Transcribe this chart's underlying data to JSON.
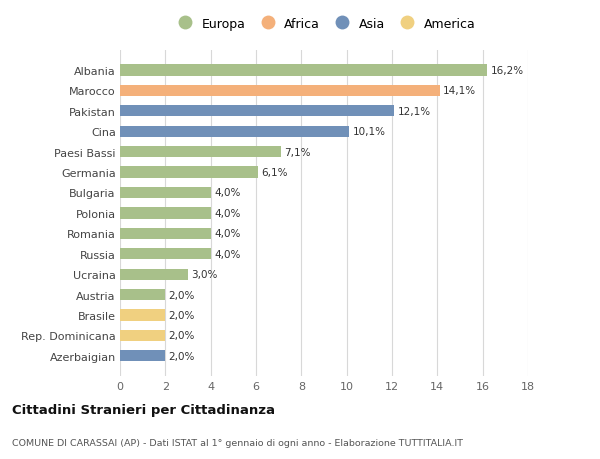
{
  "categories": [
    "Albania",
    "Marocco",
    "Pakistan",
    "Cina",
    "Paesi Bassi",
    "Germania",
    "Bulgaria",
    "Polonia",
    "Romania",
    "Russia",
    "Ucraina",
    "Austria",
    "Brasile",
    "Rep. Dominicana",
    "Azerbaigian"
  ],
  "values": [
    16.2,
    14.1,
    12.1,
    10.1,
    7.1,
    6.1,
    4.0,
    4.0,
    4.0,
    4.0,
    3.0,
    2.0,
    2.0,
    2.0,
    2.0
  ],
  "labels": [
    "16,2%",
    "14,1%",
    "12,1%",
    "10,1%",
    "7,1%",
    "6,1%",
    "4,0%",
    "4,0%",
    "4,0%",
    "4,0%",
    "3,0%",
    "2,0%",
    "2,0%",
    "2,0%",
    "2,0%"
  ],
  "continents": [
    "Europa",
    "Africa",
    "Asia",
    "Asia",
    "Europa",
    "Europa",
    "Europa",
    "Europa",
    "Europa",
    "Europa",
    "Europa",
    "Europa",
    "America",
    "America",
    "Asia"
  ],
  "colors": {
    "Europa": "#a8c08a",
    "Africa": "#f4b07a",
    "Asia": "#7090b8",
    "America": "#f0d080"
  },
  "legend_order": [
    "Europa",
    "Africa",
    "Asia",
    "America"
  ],
  "title": "Cittadini Stranieri per Cittadinanza",
  "subtitle": "COMUNE DI CARASSAI (AP) - Dati ISTAT al 1° gennaio di ogni anno - Elaborazione TUTTITALIA.IT",
  "xlim": [
    0,
    18
  ],
  "xticks": [
    0,
    2,
    4,
    6,
    8,
    10,
    12,
    14,
    16,
    18
  ],
  "background_color": "#ffffff",
  "grid_color": "#d8d8d8"
}
